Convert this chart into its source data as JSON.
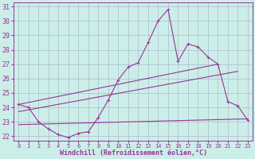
{
  "xlabel": "Windchill (Refroidissement éolien,°C)",
  "ylabel": "",
  "xlim": [
    -0.5,
    23.5
  ],
  "ylim": [
    21.7,
    31.3
  ],
  "yticks": [
    22,
    23,
    24,
    25,
    26,
    27,
    28,
    29,
    30,
    31
  ],
  "xticks": [
    0,
    1,
    2,
    3,
    4,
    5,
    6,
    7,
    8,
    9,
    10,
    11,
    12,
    13,
    14,
    15,
    16,
    17,
    18,
    19,
    20,
    21,
    22,
    23
  ],
  "bg_color": "#cceee8",
  "grid_color": "#aabbcc",
  "line_color": "#993399",
  "line1_x": [
    0,
    1,
    2,
    3,
    4,
    5,
    6,
    7,
    8,
    9,
    10,
    11,
    12,
    13,
    14,
    15,
    16,
    17,
    18,
    19,
    20,
    21,
    22,
    23
  ],
  "line1_y": [
    24.2,
    24.0,
    23.0,
    22.5,
    22.1,
    21.9,
    22.2,
    22.3,
    23.3,
    24.5,
    25.9,
    26.8,
    27.1,
    28.5,
    30.0,
    30.8,
    27.2,
    28.4,
    28.2,
    27.5,
    27.0,
    24.4,
    24.1,
    23.1
  ],
  "line2_x": [
    0,
    20
  ],
  "line2_y": [
    24.2,
    27.0
  ],
  "line3_x": [
    0,
    22
  ],
  "line3_y": [
    23.7,
    26.5
  ],
  "line4_x": [
    0,
    23
  ],
  "line4_y": [
    22.8,
    23.2
  ]
}
